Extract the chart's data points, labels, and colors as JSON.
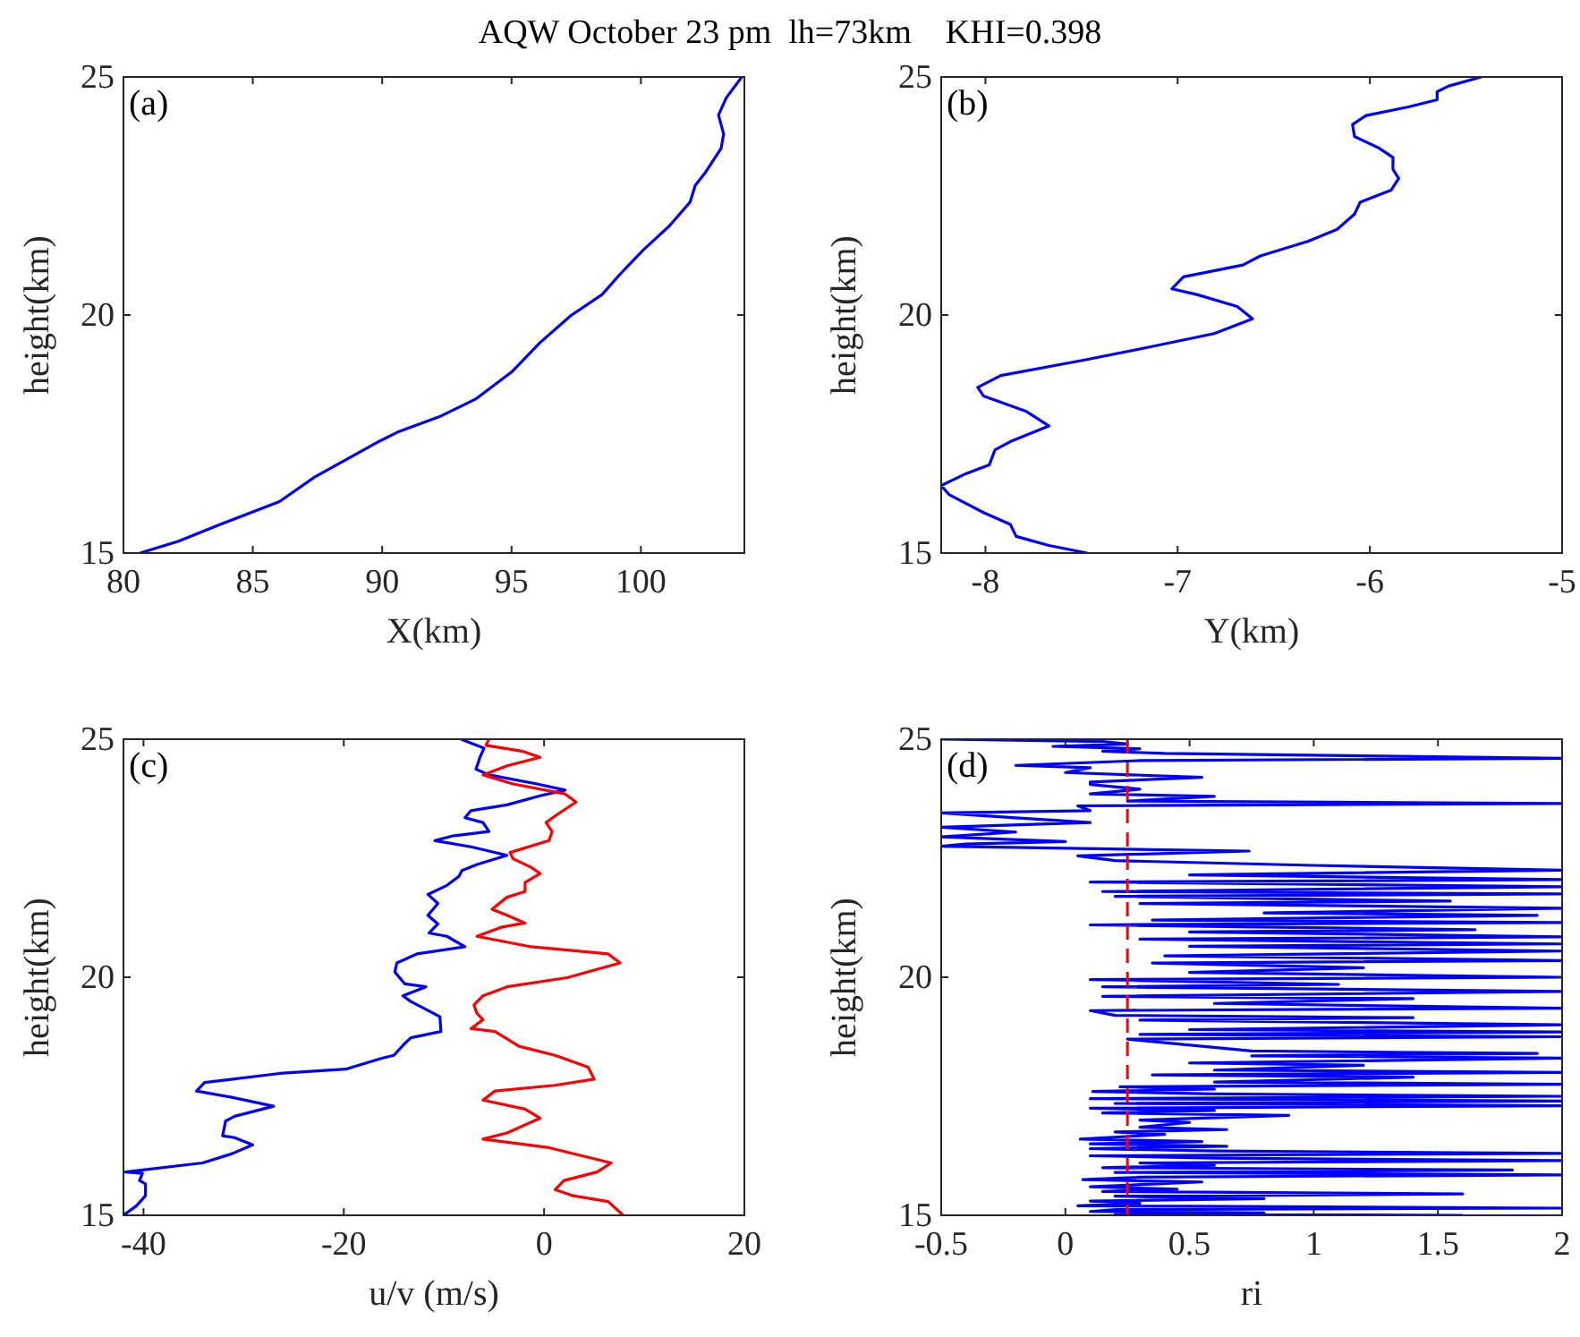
{
  "chart_data": [
    {
      "type": "line",
      "title": "AQW October 23 pm  lh=73km    KHI=0.398",
      "xlabel": "X(km)",
      "ylabel": "height(km)",
      "annotations": [
        "(a)"
      ],
      "xlim": [
        80,
        104
      ],
      "xticks": [
        80,
        85,
        90,
        95,
        100
      ],
      "ylim": [
        15,
        25
      ],
      "yticks": [
        15,
        20,
        25
      ],
      "grid": false,
      "series": [
        {
          "color": "#0000ff",
          "x": [
            80.64,
            82.13,
            83.74,
            86.03,
            87.4,
            89.93,
            90.6,
            92.2,
            93.6,
            95.0,
            96.1,
            97.3,
            98.5,
            99.2,
            100.1,
            101.1,
            101.9,
            102.1,
            102.5,
            103.1,
            103.2,
            103.0,
            103.3,
            103.9
          ],
          "values": [
            15,
            15.25,
            15.6,
            16.08,
            16.6,
            17.36,
            17.54,
            17.86,
            18.23,
            18.8,
            19.42,
            19.99,
            20.43,
            20.86,
            21.37,
            21.87,
            22.37,
            22.72,
            23.0,
            23.5,
            23.8,
            24.2,
            24.56,
            25
          ]
        }
      ]
    },
    {
      "type": "line",
      "xlabel": "Y(km)",
      "ylabel": "height(km)",
      "annotations": [
        "(b)"
      ],
      "xlim": [
        -8.23,
        -5
      ],
      "xticks": [
        -8,
        -7,
        -6,
        -5
      ],
      "ylim": [
        15,
        25
      ],
      "yticks": [
        15,
        20,
        25
      ],
      "grid": false,
      "series": [
        {
          "color": "#0000ff",
          "x": [
            -7.47,
            -7.67,
            -7.84,
            -7.87,
            -8.01,
            -8.19,
            -8.23,
            -8.1,
            -7.98,
            -7.95,
            -7.86,
            -7.67,
            -7.79,
            -8.01,
            -8.04,
            -7.92,
            -7.49,
            -7.18,
            -6.81,
            -6.61,
            -6.69,
            -6.9,
            -7.03,
            -6.97,
            -6.66,
            -6.57,
            -6.32,
            -6.17,
            -6.08,
            -6.05,
            -5.89,
            -5.85,
            -5.88,
            -5.88,
            -5.95,
            -6.08,
            -6.09,
            -6.02,
            -5.8,
            -5.65,
            -5.65,
            -5.59,
            -5.42
          ],
          "values": [
            15,
            15.16,
            15.35,
            15.6,
            15.85,
            16.23,
            16.42,
            16.67,
            16.85,
            17.17,
            17.36,
            17.67,
            17.98,
            18.3,
            18.48,
            18.73,
            19.05,
            19.3,
            19.61,
            19.92,
            20.18,
            20.43,
            20.55,
            20.8,
            21.05,
            21.24,
            21.55,
            21.8,
            22.12,
            22.37,
            22.62,
            22.87,
            23.06,
            23.31,
            23.5,
            23.75,
            24.0,
            24.19,
            24.37,
            24.52,
            24.69,
            24.81,
            25
          ]
        }
      ]
    },
    {
      "type": "line",
      "xlabel": "u/v (m/s)",
      "ylabel": "height(km)",
      "annotations": [
        "(c)"
      ],
      "xlim": [
        -42,
        20
      ],
      "xticks": [
        -40,
        -20,
        0,
        20
      ],
      "ylim": [
        15,
        25
      ],
      "yticks": [
        15,
        20,
        25
      ],
      "grid": false,
      "series": [
        {
          "color": "#0000ff",
          "x": [
            -42,
            -40.7,
            -39.8,
            -39.8,
            -40.4,
            -40.1,
            -41.8,
            -34.1,
            -31.2,
            -29.1,
            -30.9,
            -32.1,
            -31.8,
            -30.9,
            -27.0,
            -31.2,
            -34.7,
            -33.9,
            -26.4,
            -19.8,
            -16.2,
            -15.0,
            -13.9,
            -13.3,
            -10.3,
            -10.4,
            -12.1,
            -13.3,
            -14.1,
            -11.8,
            -13.9,
            -14.9,
            -14.7,
            -12.7,
            -7.9,
            -9.7,
            -11.5,
            -10.6,
            -11.6,
            -10.6,
            -11.6,
            -9.7,
            -8.5,
            -8.2,
            -6.7,
            -3.7,
            -7.3,
            -10.9,
            -9.1,
            -5.5,
            -6.1,
            -7.9,
            -7.3,
            -3.7,
            -0.4,
            2.1,
            -0.7,
            -5.5,
            -6.8,
            -6.4,
            -6.0,
            -8.3
          ],
          "values": [
            15,
            15.2,
            15.41,
            15.66,
            15.73,
            15.88,
            15.91,
            16.1,
            16.29,
            16.48,
            16.63,
            16.67,
            16.98,
            17.08,
            17.29,
            17.48,
            17.61,
            17.79,
            17.98,
            18.07,
            18.3,
            18.36,
            18.61,
            18.73,
            18.86,
            19.17,
            19.36,
            19.49,
            19.61,
            19.8,
            19.86,
            20.11,
            20.3,
            20.49,
            20.64,
            20.86,
            20.93,
            21.12,
            21.3,
            21.55,
            21.74,
            21.93,
            22.12,
            22.24,
            22.37,
            22.56,
            22.74,
            22.87,
            22.97,
            23.06,
            23.25,
            23.35,
            23.5,
            23.62,
            23.81,
            23.93,
            24.06,
            24.25,
            24.37,
            24.62,
            24.81,
            25
          ]
        },
        {
          "color": "#ff0000",
          "x": [
            7.9,
            6.4,
            2.9,
            1.1,
            2.0,
            5.3,
            6.7,
            0.5,
            -6.1,
            -3.7,
            -0.4,
            -1.9,
            -6.1,
            -4.9,
            1.1,
            5.0,
            4.4,
            1.1,
            -2.5,
            -4.9,
            -7.3,
            -6.1,
            -6.7,
            -7.0,
            -6.1,
            -3.7,
            2.3,
            7.6,
            6.4,
            -1.3,
            -6.7,
            -4.3,
            -1.9,
            -3.7,
            -5.2,
            -3.7,
            -1.9,
            -1.9,
            -0.4,
            -1.3,
            -3.1,
            -3.4,
            0.5,
            0.8,
            0.2,
            1.4,
            3.2,
            2.1,
            -3.1,
            -6.1,
            -3.7,
            -0.4,
            -2.2,
            -5.8,
            -5.5
          ],
          "values": [
            15,
            15.29,
            15.41,
            15.54,
            15.73,
            15.91,
            16.1,
            16.42,
            16.6,
            16.73,
            17.04,
            17.23,
            17.42,
            17.61,
            17.73,
            17.86,
            18.11,
            18.36,
            18.55,
            18.86,
            18.92,
            19.11,
            19.24,
            19.42,
            19.61,
            19.8,
            19.99,
            20.3,
            20.49,
            20.64,
            20.86,
            21.05,
            21.14,
            21.3,
            21.43,
            21.68,
            21.8,
            21.99,
            22.18,
            22.31,
            22.49,
            22.62,
            22.87,
            23.06,
            23.25,
            23.43,
            23.68,
            23.85,
            24.06,
            24.25,
            24.44,
            24.62,
            24.75,
            24.87,
            25
          ]
        }
      ]
    },
    {
      "type": "line",
      "xlabel": "ri",
      "ylabel": "height(km)",
      "annotations": [
        "(d)"
      ],
      "xlim": [
        -0.5,
        2
      ],
      "xticks": [
        -0.5,
        0,
        0.5,
        1,
        1.5,
        2
      ],
      "ylim": [
        15,
        25
      ],
      "yticks": [
        15,
        20,
        25
      ],
      "grid": false,
      "ref_lines": [
        {
          "axis": "x",
          "value": 0.25,
          "color": "#ff0000",
          "line_style": "dashed"
        }
      ],
      "series": [
        {
          "color": "#0000ff",
          "x": [
            1.6,
            0.2,
            0.8,
            0.1,
            0.2,
            2.0,
            0.05,
            0.3,
            0.1,
            0.8,
            0.2,
            1.6,
            0.15,
            0.45,
            0.1,
            0.55,
            0.07,
            0.3,
            2.0,
            0.2,
            1.8,
            0.15,
            0.6,
            0.3,
            2.0,
            0.6,
            0.1,
            2.0,
            0.6,
            0.1,
            0.65,
            0.1,
            0.55,
            0.06,
            0.4,
            0.2,
            0.65,
            0.3,
            0.5,
            0.3,
            0.9,
            0.15,
            0.6,
            0.1,
            2.0,
            0.2,
            2.0,
            0.1,
            2.0,
            0.6,
            0.11,
            0.6,
            0.22,
            2.0,
            0.6,
            1.4,
            0.35,
            2.0,
            0.6,
            1.2,
            0.5,
            2.0,
            0.75,
            1.9,
            0.75,
            0.25,
            2.0,
            0.3,
            2.0,
            0.5,
            2.0,
            0.3,
            1.4,
            0.2,
            0.1,
            2.0,
            0.6,
            1.4,
            0.15,
            2.0,
            0.15,
            1.1,
            0.1,
            2.0,
            0.5,
            1.2,
            0.35,
            2.0,
            0.4,
            2.0,
            0.5,
            2.0,
            0.3,
            2.0,
            0.5,
            1.65,
            0.1,
            2.0,
            0.35,
            1.9,
            0.8,
            2.0,
            0.3,
            1.55,
            0.2,
            2.0,
            0.15,
            2.0,
            0.1,
            2.0,
            0.5,
            2.0,
            1.0,
            0.2,
            0.05,
            0.74,
            -0.5,
            -0.4,
            0.0,
            -0.5,
            -0.2,
            -0.5,
            0.1,
            -0.2,
            -0.5,
            0.1,
            0.05,
            2.0,
            0.25,
            0.6,
            0.1,
            0.3,
            0.1,
            0.1,
            0.55,
            0.0,
            0.1,
            -0.2,
            0.3,
            2.0,
            0.4,
            0.15,
            0.3,
            -0.05,
            0.25,
            0.15,
            -0.5
          ],
          "values": [
            15,
            15.02,
            15.05,
            15.08,
            15.12,
            15.15,
            15.2,
            15.25,
            15.3,
            15.35,
            15.4,
            15.45,
            15.5,
            15.55,
            15.6,
            15.7,
            15.75,
            15.8,
            15.85,
            15.9,
            15.95,
            16.0,
            16.05,
            16.1,
            16.15,
            16.2,
            16.25,
            16.3,
            16.35,
            16.4,
            16.45,
            16.5,
            16.55,
            16.6,
            16.7,
            16.75,
            16.8,
            16.85,
            16.95,
            17.0,
            17.1,
            17.15,
            17.2,
            17.25,
            17.3,
            17.35,
            17.4,
            17.45,
            17.5,
            17.55,
            17.6,
            17.65,
            17.7,
            17.75,
            17.8,
            17.9,
            17.95,
            18.0,
            18.05,
            18.15,
            18.2,
            18.3,
            18.35,
            18.4,
            18.45,
            18.7,
            18.75,
            18.8,
            18.85,
            18.9,
            19.0,
            19.1,
            19.15,
            19.2,
            19.3,
            19.35,
            19.45,
            19.55,
            19.6,
            19.7,
            19.8,
            19.85,
            19.95,
            20.0,
            20.1,
            20.2,
            20.3,
            20.35,
            20.45,
            20.55,
            20.65,
            20.7,
            20.8,
            20.85,
            20.95,
            21.0,
            21.1,
            21.15,
            21.2,
            21.3,
            21.35,
            21.45,
            21.55,
            21.6,
            21.7,
            21.75,
            21.8,
            21.9,
            22.0,
            22.05,
            22.15,
            22.25,
            22.35,
            22.45,
            22.55,
            22.65,
            22.75,
            22.8,
            22.85,
            22.95,
            23.05,
            23.15,
            23.25,
            23.35,
            23.45,
            23.5,
            23.6,
            23.65,
            23.7,
            23.8,
            23.85,
            23.95,
            24.05,
            24.1,
            24.2,
            24.3,
            24.4,
            24.45,
            24.55,
            24.6,
            24.7,
            24.75,
            24.8,
            24.85,
            24.9,
            24.95,
            25.0
          ]
        }
      ]
    }
  ]
}
